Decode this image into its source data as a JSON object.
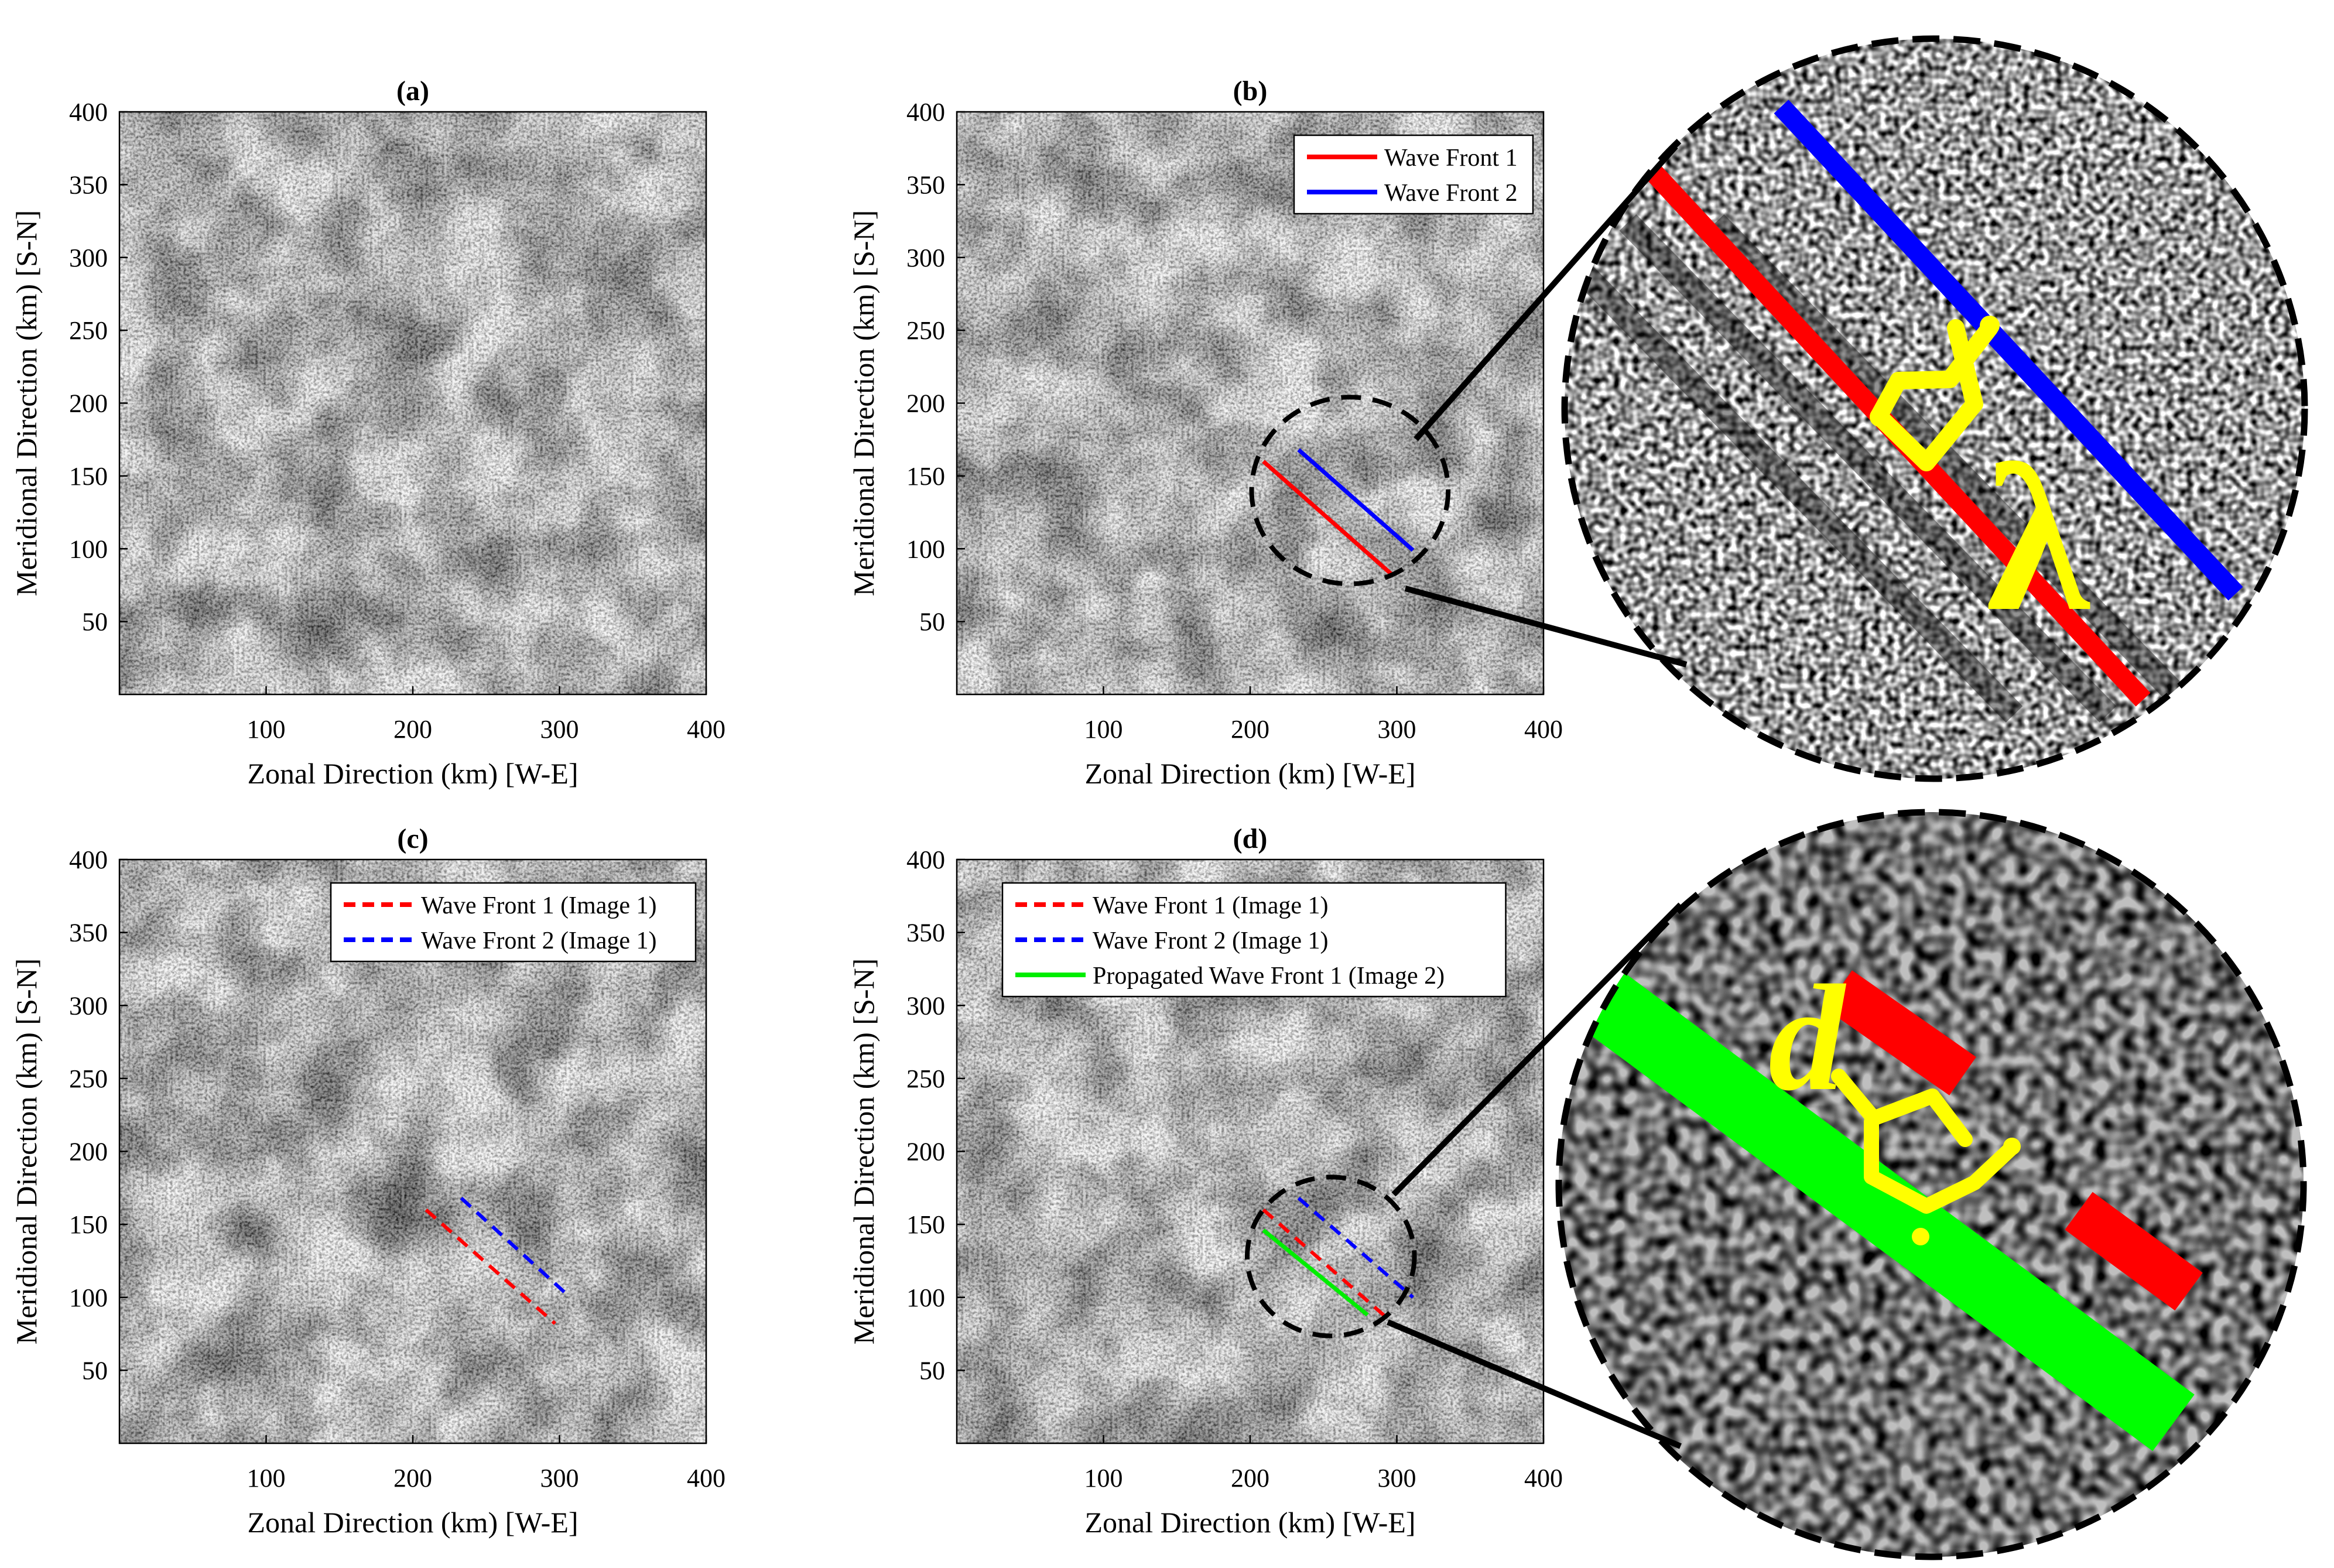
{
  "panels": [
    {
      "title": "(a)",
      "legend": []
    },
    {
      "title": "(b)",
      "legend": [
        {
          "label": "Wave Front 1",
          "color": "#ff0000",
          "dash": false
        },
        {
          "label": "Wave Front 2",
          "color": "#0000ff",
          "dash": false
        }
      ]
    },
    {
      "title": "(c)",
      "legend": [
        {
          "label": "Wave Front 1 (Image 1)",
          "color": "#ff0000",
          "dash": true
        },
        {
          "label": "Wave Front 2 (Image 1)",
          "color": "#0000ff",
          "dash": true
        }
      ]
    },
    {
      "title": "(d)",
      "legend": [
        {
          "label": "Wave Front 1 (Image 1)",
          "color": "#ff0000",
          "dash": true
        },
        {
          "label": "Wave Front 2 (Image 1)",
          "color": "#0000ff",
          "dash": true
        },
        {
          "label": "Propagated Wave Front 1 (Image 2)",
          "color": "#00ee00",
          "dash": false
        }
      ]
    }
  ],
  "axes": {
    "xlabel": "Zonal Direction (km) [W-E]",
    "ylabel": "Meridional Direction (km) [S-N]",
    "xticks": [
      100,
      200,
      300,
      400
    ],
    "yticks": [
      50,
      100,
      150,
      200,
      250,
      300,
      350,
      400
    ],
    "xlim": [
      0,
      400
    ],
    "ylim": [
      0,
      400
    ]
  },
  "insets": {
    "top_symbol": "λ",
    "bottom_symbol": "d"
  },
  "chart_data": [
    {
      "type": "image",
      "title": "(a)",
      "xlabel": "Zonal Direction (km) [W-E]",
      "ylabel": "Meridional Direction (km) [S-N]",
      "xlim": [
        0,
        400
      ],
      "ylim": [
        0,
        400
      ],
      "series": []
    },
    {
      "type": "line",
      "title": "(b)",
      "xlabel": "Zonal Direction (km) [W-E]",
      "ylabel": "Meridional Direction (km) [S-N]",
      "xlim": [
        0,
        400
      ],
      "ylim": [
        0,
        400
      ],
      "series": [
        {
          "name": "Wave Front 1",
          "x": [
            209,
            297
          ],
          "y": [
            160,
            82
          ]
        },
        {
          "name": "Wave Front 2",
          "x": [
            233,
            311
          ],
          "y": [
            168,
            99
          ]
        }
      ],
      "zoom_circle": {
        "center": [
          268,
          140
        ],
        "radius_km": 67
      }
    },
    {
      "type": "line",
      "title": "(c)",
      "xlabel": "Zonal Direction (km) [W-E]",
      "ylabel": "Meridional Direction (km) [S-N]",
      "xlim": [
        0,
        400
      ],
      "ylim": [
        0,
        400
      ],
      "series": [
        {
          "name": "Wave Front 1 (Image 1)",
          "x": [
            209,
            297
          ],
          "y": [
            160,
            82
          ]
        },
        {
          "name": "Wave Front 2 (Image 1)",
          "x": [
            233,
            304
          ],
          "y": [
            168,
            103
          ]
        }
      ]
    },
    {
      "type": "line",
      "title": "(d)",
      "xlabel": "Zonal Direction (km) [W-E]",
      "ylabel": "Meridional Direction (km) [S-N]",
      "xlim": [
        0,
        400
      ],
      "ylim": [
        0,
        400
      ],
      "series": [
        {
          "name": "Wave Front 1 (Image 1)",
          "x": [
            209,
            292
          ],
          "y": [
            160,
            87
          ]
        },
        {
          "name": "Wave Front 2 (Image 1)",
          "x": [
            233,
            311
          ],
          "y": [
            168,
            100
          ]
        },
        {
          "name": "Propagated Wave Front 1 (Image 2)",
          "x": [
            209,
            280
          ],
          "y": [
            146,
            88
          ]
        }
      ],
      "zoom_circle": {
        "center": [
          255,
          128
        ],
        "radius_km": 57
      }
    }
  ]
}
